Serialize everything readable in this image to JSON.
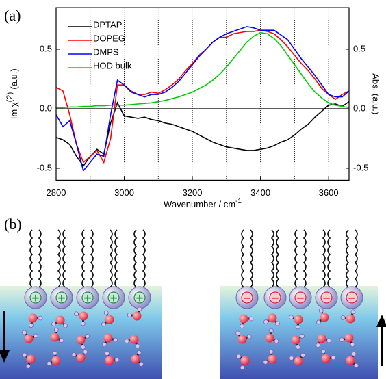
{
  "panel_a": "(a)",
  "panel_b": "(b)",
  "chart_data": {
    "type": "line",
    "x_label": "Wavenumber / cm",
    "x_label_sup": "-1",
    "y_label": "Im χ",
    "y_label_sup": "(2)",
    "y_label_suffix": "(a.u.)",
    "y2_label": "Abs. (a.u.)",
    "x": [
      2800,
      2820,
      2840,
      2860,
      2880,
      2900,
      2920,
      2940,
      2960,
      2980,
      3000,
      3020,
      3040,
      3060,
      3080,
      3100,
      3120,
      3140,
      3160,
      3180,
      3200,
      3220,
      3240,
      3260,
      3280,
      3300,
      3320,
      3340,
      3360,
      3380,
      3400,
      3420,
      3440,
      3460,
      3480,
      3500,
      3520,
      3540,
      3560,
      3580,
      3600,
      3620,
      3640,
      3660
    ],
    "series": [
      {
        "name": "DPTAP",
        "color": "#000000",
        "values": [
          -0.24,
          -0.26,
          -0.3,
          -0.4,
          -0.48,
          -0.4,
          -0.34,
          -0.38,
          -0.12,
          0.05,
          -0.06,
          -0.07,
          -0.08,
          -0.07,
          -0.09,
          -0.1,
          -0.12,
          -0.13,
          -0.15,
          -0.17,
          -0.19,
          -0.22,
          -0.25,
          -0.28,
          -0.3,
          -0.32,
          -0.33,
          -0.34,
          -0.35,
          -0.35,
          -0.34,
          -0.33,
          -0.31,
          -0.28,
          -0.26,
          -0.22,
          -0.17,
          -0.13,
          -0.07,
          -0.02,
          0.03,
          0.04,
          0.02,
          0.06
        ]
      },
      {
        "name": "DOPEG",
        "color": "#ff0000",
        "values": [
          0.18,
          0.15,
          -0.05,
          -0.3,
          -0.45,
          -0.4,
          -0.35,
          -0.45,
          -0.25,
          0.2,
          0.2,
          0.15,
          0.12,
          0.12,
          0.14,
          0.13,
          0.16,
          0.2,
          0.25,
          0.32,
          0.38,
          0.45,
          0.5,
          0.56,
          0.6,
          0.6,
          0.63,
          0.64,
          0.65,
          0.65,
          0.66,
          0.65,
          0.63,
          0.58,
          0.52,
          0.45,
          0.38,
          0.32,
          0.25,
          0.17,
          0.12,
          0.08,
          0.12,
          0.15
        ]
      },
      {
        "name": "DMPS",
        "color": "#0000ff",
        "values": [
          -0.05,
          -0.15,
          -0.1,
          -0.3,
          -0.52,
          -0.45,
          -0.38,
          -0.4,
          -0.05,
          0.24,
          0.2,
          0.14,
          0.12,
          0.1,
          0.12,
          0.12,
          0.14,
          0.18,
          0.23,
          0.3,
          0.37,
          0.44,
          0.5,
          0.56,
          0.6,
          0.63,
          0.65,
          0.67,
          0.69,
          0.68,
          0.66,
          0.66,
          0.66,
          0.62,
          0.58,
          0.5,
          0.42,
          0.35,
          0.28,
          0.2,
          0.12,
          0.1,
          0.1,
          0.15
        ]
      },
      {
        "name": "HOD bulk",
        "color": "#00cc00",
        "axis": "y2",
        "values": [
          0.01,
          0.01,
          0.015,
          0.015,
          0.02,
          0.02,
          0.025,
          0.025,
          0.03,
          0.03,
          0.03,
          0.035,
          0.04,
          0.045,
          0.05,
          0.06,
          0.07,
          0.085,
          0.1,
          0.12,
          0.14,
          0.17,
          0.2,
          0.24,
          0.29,
          0.35,
          0.42,
          0.49,
          0.56,
          0.61,
          0.64,
          0.63,
          0.59,
          0.53,
          0.45,
          0.37,
          0.29,
          0.21,
          0.14,
          0.09,
          0.05,
          0.03,
          0.02,
          0.01
        ]
      }
    ],
    "xlim": [
      2800,
      3660
    ],
    "xticks": [
      2800,
      3000,
      3200,
      3400,
      3600
    ],
    "xgrid": [
      2900,
      3000,
      3100,
      3200,
      3300,
      3400,
      3500,
      3600
    ],
    "ylim": [
      -0.6,
      0.85
    ],
    "yticks": [
      -0.5,
      {
        "value": 0,
        "label": "0.0"
      },
      0.5
    ],
    "y2lim": [
      -0.6,
      0.85
    ],
    "y2ticks": [
      -0.5,
      {
        "value": 0,
        "label": "0.0"
      },
      0.5
    ],
    "legend": "upper left"
  },
  "diagram": {
    "left_charge": "+",
    "right_charge": "−"
  }
}
